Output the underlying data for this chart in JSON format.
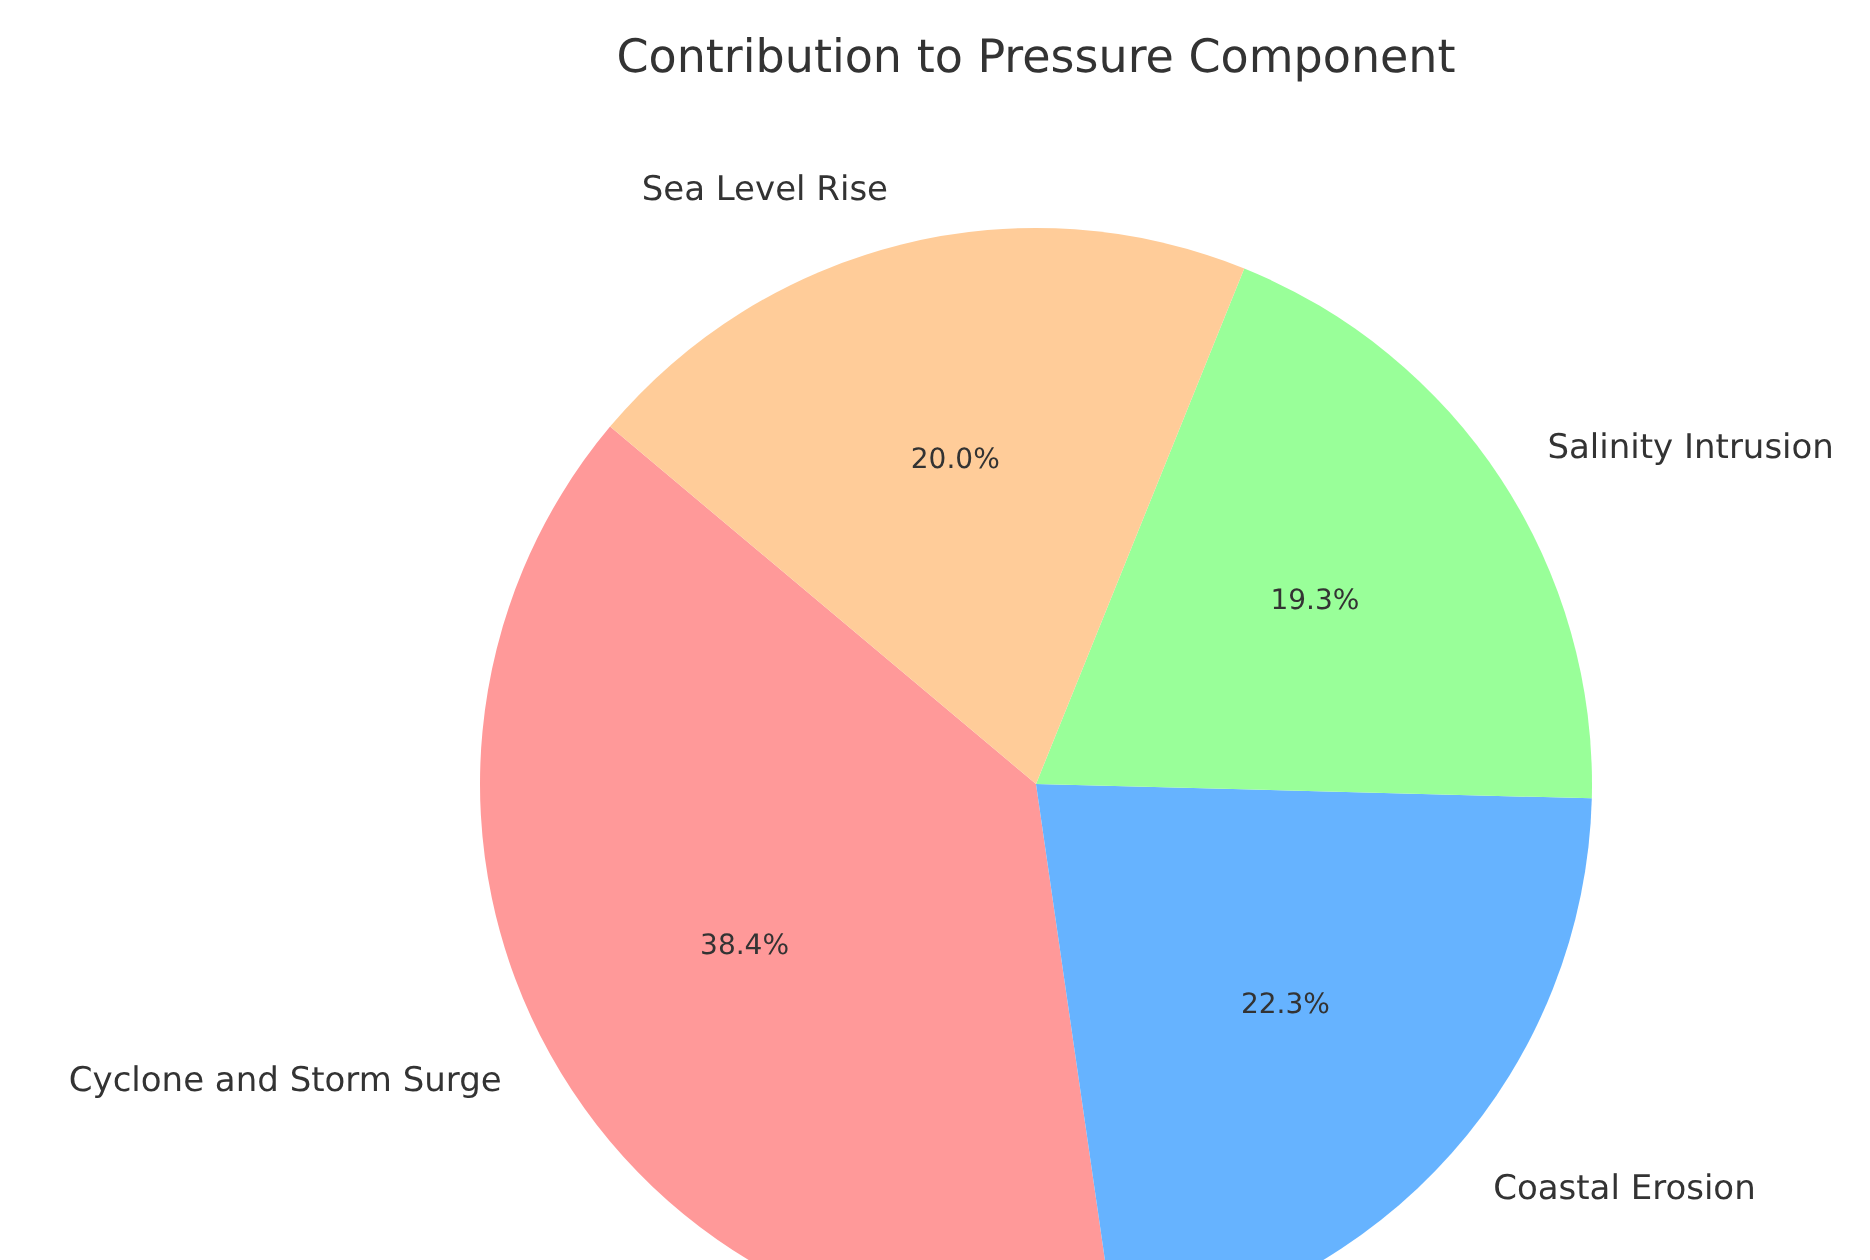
{
  "chart_data": {
    "type": "pie",
    "title": "Contribution to Pressure Component",
    "categories": [
      "Cyclone and Storm Surge",
      "Coastal Erosion",
      "Salinity Intrusion",
      "Sea Level Rise"
    ],
    "values": [
      38.4,
      22.3,
      19.3,
      20.0
    ],
    "colors": [
      "#ff9999",
      "#66b3ff",
      "#99ff99",
      "#ffcc99"
    ],
    "value_labels": [
      "38.4%",
      "22.3%",
      "19.3%",
      "20.0%"
    ]
  }
}
